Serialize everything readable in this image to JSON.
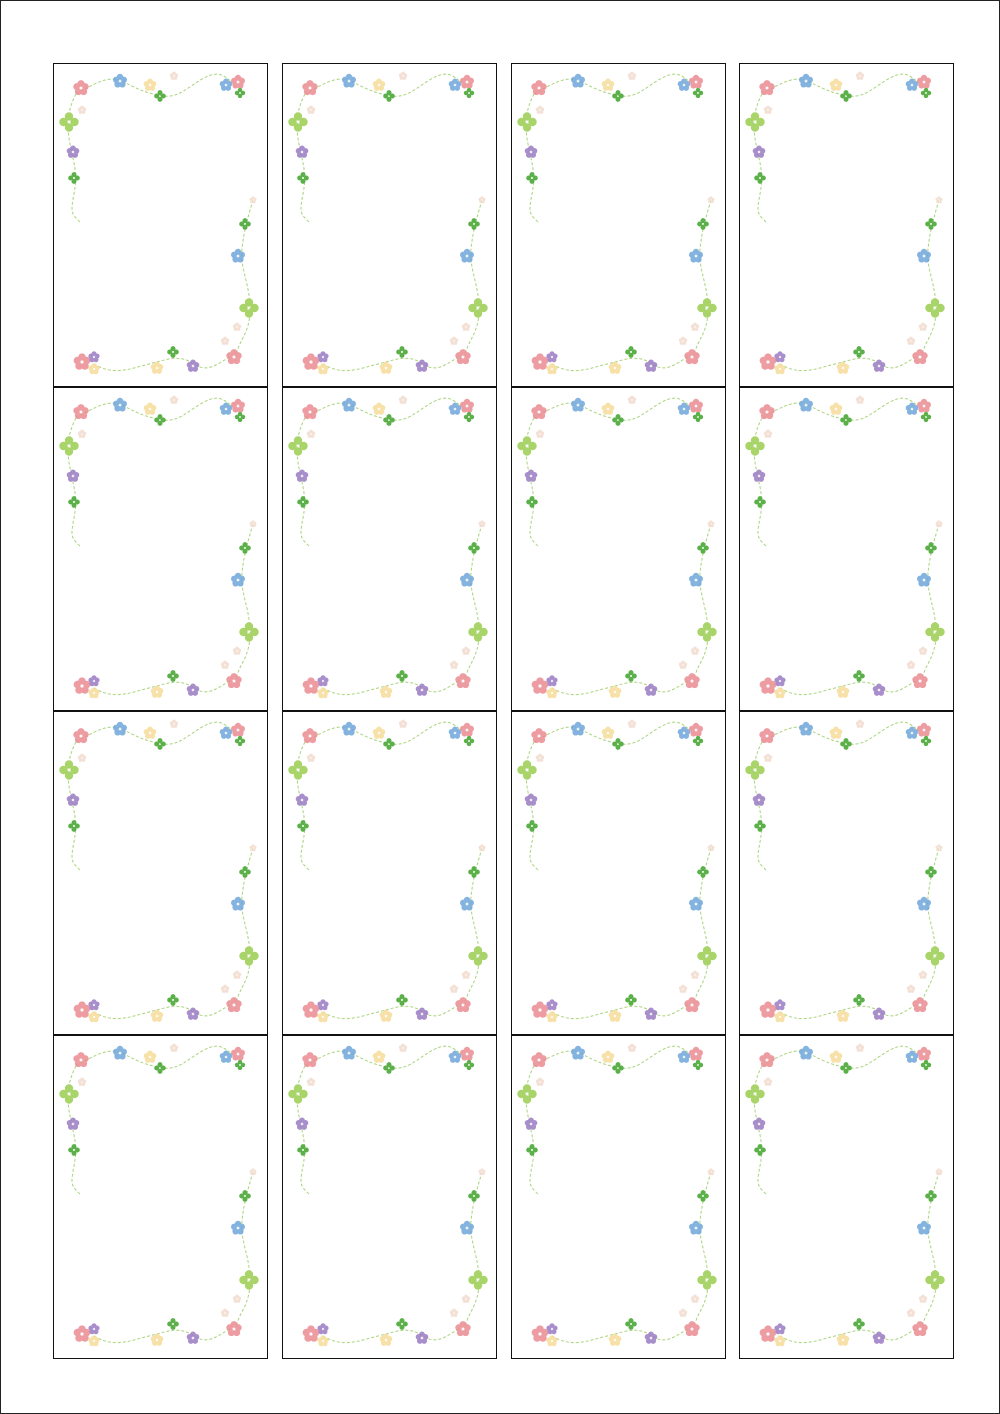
{
  "sheet": {
    "rows": 4,
    "columns": 4,
    "card_style": "floral-corner-frame"
  },
  "colors": {
    "border": "#111111",
    "vine": "#a8d47a",
    "pink": "#eb8c92",
    "blue": "#6fa6db",
    "yellow": "#f6dc9a",
    "purple": "#9a7cc4",
    "clover_dark": "#5cb04a",
    "clover_light": "#a9d46a",
    "faint": "#f3dcd0"
  }
}
